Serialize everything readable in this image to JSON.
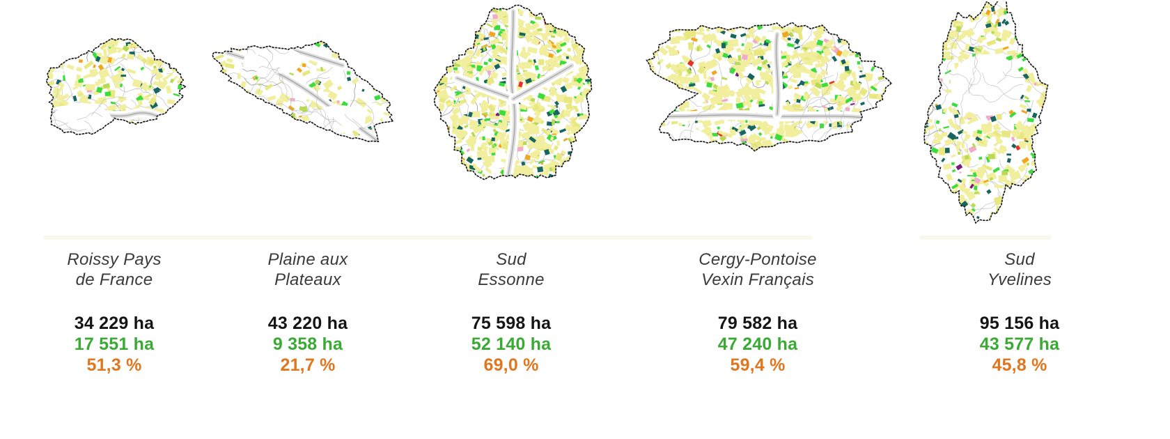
{
  "figure": {
    "unit": "ha",
    "stat_colors": {
      "total_area": "#151515",
      "agricultural_area": "#3aaa35",
      "percentage": "#e0771f"
    },
    "map_palette": {
      "parcel_yellow": "#f1ef9e",
      "parcel_green": "#3bdc3c",
      "parcel_teal": "#17655f",
      "parcel_yellow_green": "#b9da55",
      "parcel_orange": "#f2a51e",
      "parcel_pink": "#f2abca",
      "parcel_purple": "#7c1d79",
      "parcel_red": "#e63329",
      "contour_gray": "#b5b5b5",
      "boundary_black": "#1a1a1a"
    }
  },
  "regions": [
    {
      "name_line1": "Roissy Pays",
      "name_line2": "de France",
      "total_area": "34 229 ha",
      "agri_area": "17 551 ha",
      "percent": "51,3 %"
    },
    {
      "name_line1": "Plaine aux",
      "name_line2": "Plateaux",
      "total_area": "43 220 ha",
      "agri_area": "9 358 ha",
      "percent": "21,7 %"
    },
    {
      "name_line1": "Sud",
      "name_line2": "Essonne",
      "total_area": "75 598 ha",
      "agri_area": "52 140 ha",
      "percent": "69,0 %"
    },
    {
      "name_line1": "Cergy-Pontoise",
      "name_line2": "Vexin Français",
      "total_area": "79 582 ha",
      "agri_area": "47 240 ha",
      "percent": "59,4 %"
    },
    {
      "name_line1": "Sud",
      "name_line2": "Yvelines",
      "total_area": "95 156 ha",
      "agri_area": "43 577 ha",
      "percent": "45,8 %"
    }
  ]
}
